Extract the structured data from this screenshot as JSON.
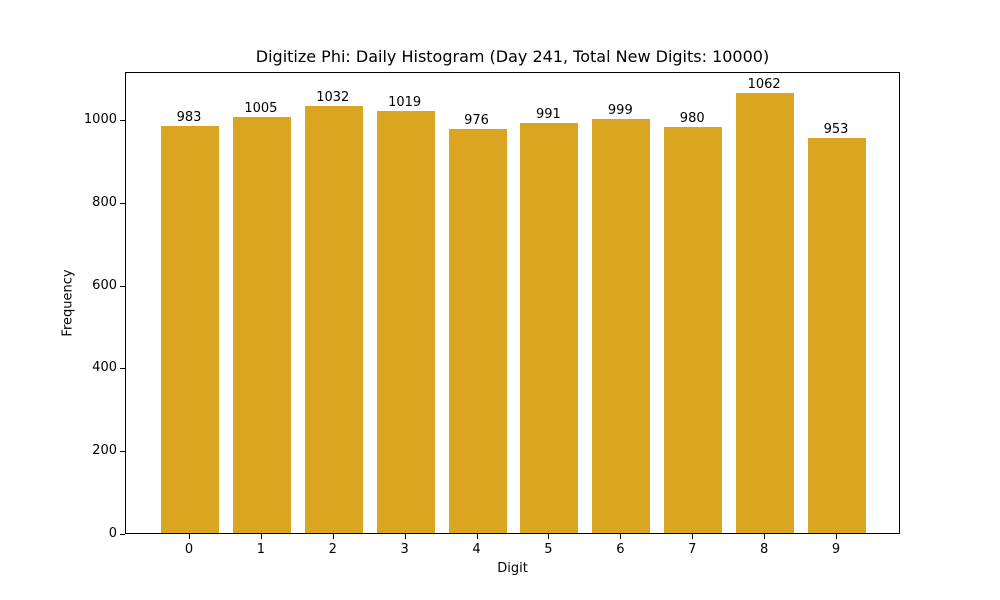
{
  "chart_data": {
    "type": "bar",
    "title": "Digitize Phi: Daily Histogram (Day 241, Total New Digits: 10000)",
    "xlabel": "Digit",
    "ylabel": "Frequency",
    "categories": [
      "0",
      "1",
      "2",
      "3",
      "4",
      "5",
      "6",
      "7",
      "8",
      "9"
    ],
    "values": [
      983,
      1005,
      1032,
      1019,
      976,
      991,
      999,
      980,
      1062,
      953
    ],
    "yticks": [
      0,
      200,
      400,
      600,
      800,
      1000
    ],
    "ylim": [
      0,
      1116
    ],
    "grid": false,
    "bar_color": "#DAA520",
    "data_labels": true
  }
}
